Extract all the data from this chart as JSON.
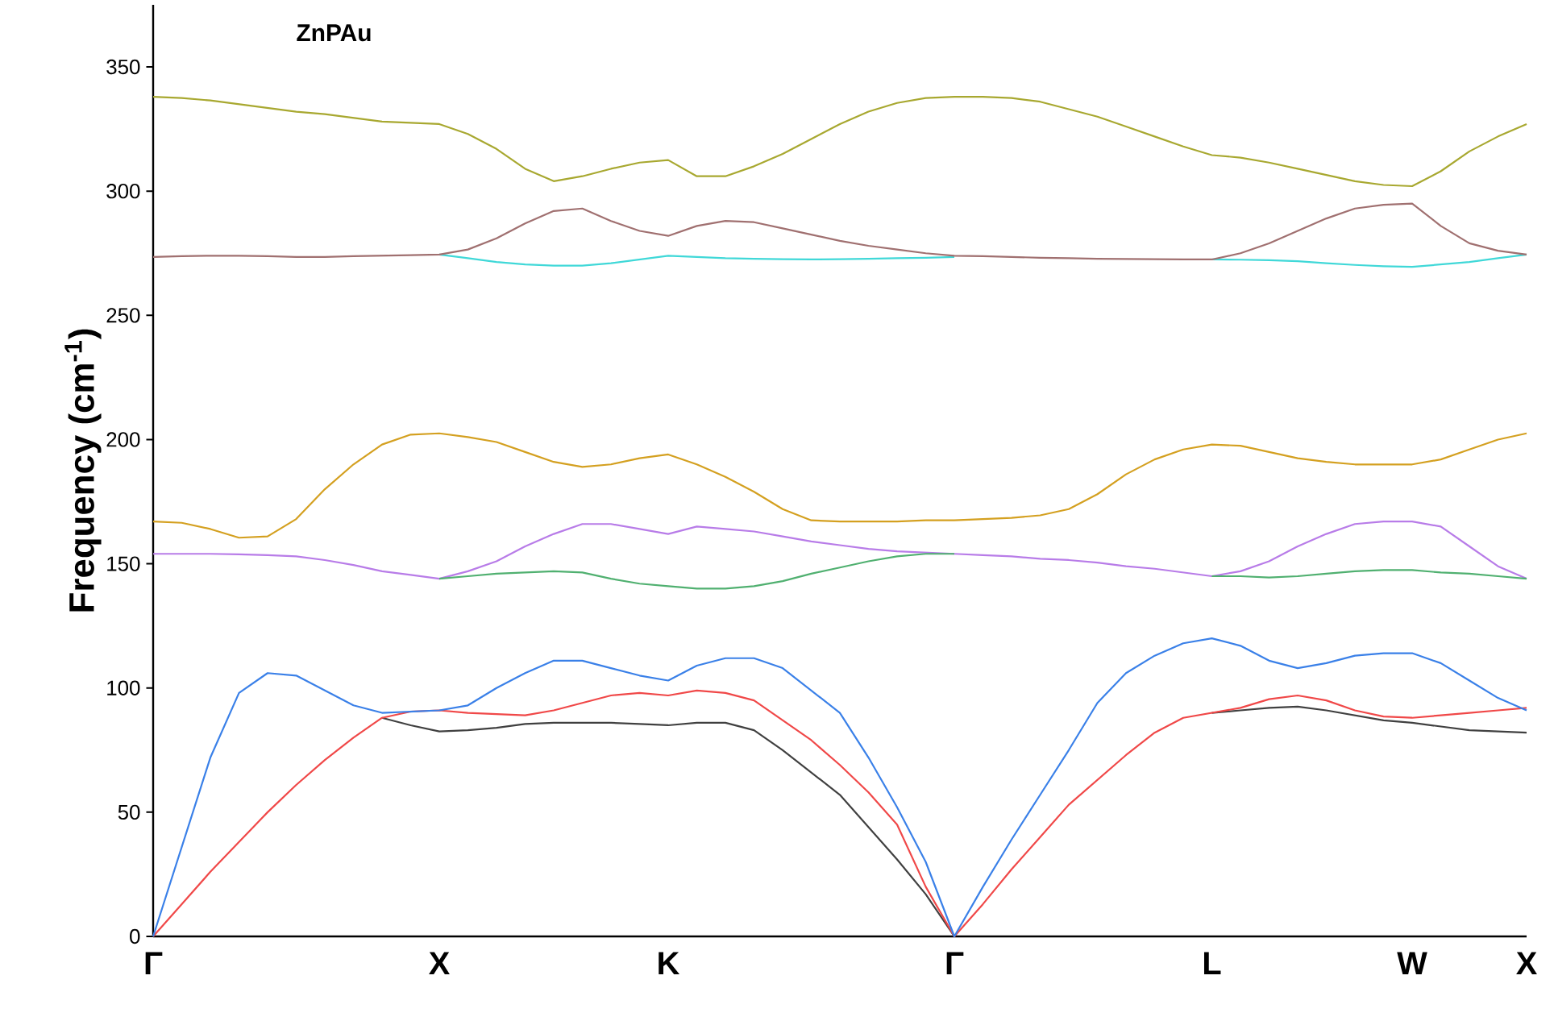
{
  "chart_data": {
    "type": "line",
    "title": "ZnPAu",
    "ylabel": "Frequency (cm$^{-1}$)",
    "categories": [
      "Γ",
      null,
      null,
      null,
      null,
      null,
      null,
      null,
      null,
      null,
      "X",
      null,
      null,
      null,
      null,
      null,
      null,
      null,
      "K",
      null,
      null,
      null,
      null,
      null,
      null,
      null,
      null,
      null,
      "Γ",
      null,
      null,
      null,
      null,
      null,
      null,
      null,
      null,
      "L",
      null,
      null,
      null,
      null,
      null,
      null,
      "W",
      null,
      null,
      null,
      "X"
    ],
    "ylim": [
      0,
      375
    ],
    "yticks": [
      0,
      50,
      100,
      150,
      200,
      250,
      300,
      350
    ],
    "marker": "none",
    "line_style": "solid",
    "series": [
      {
        "color": "#404040",
        "values": [
          null,
          null,
          null,
          null,
          null,
          null,
          null,
          null,
          88,
          85,
          82.5,
          83,
          84,
          85.5,
          86,
          86,
          86,
          85.5,
          85,
          86,
          86,
          83,
          75,
          66,
          57,
          44,
          31,
          17,
          0,
          null,
          null,
          null,
          null,
          null,
          null,
          null,
          null,
          90,
          91,
          92,
          92.5,
          91,
          89,
          87,
          86,
          84.5,
          83,
          82.5,
          82
        ]
      },
      {
        "color": "#f04848",
        "values": [
          0,
          13,
          26,
          38,
          50,
          61,
          71,
          80,
          88,
          90.5,
          91,
          90,
          89.5,
          89,
          91,
          94,
          97,
          98,
          97,
          99,
          98,
          95,
          87,
          79,
          69,
          58,
          45,
          20,
          0,
          13,
          27,
          40,
          53,
          63,
          73,
          82,
          88,
          90,
          92,
          95.5,
          97,
          95,
          91,
          88.5,
          88,
          89,
          90,
          91,
          92
        ]
      },
      {
        "color": "#3a80e8",
        "values": [
          0,
          36,
          72,
          98,
          106,
          105,
          99,
          93,
          90,
          90.5,
          91,
          93,
          100,
          106,
          111,
          111,
          108,
          105,
          103,
          109,
          112,
          112,
          108,
          99,
          90,
          72,
          52,
          30,
          0,
          20,
          39,
          57,
          75,
          94,
          106,
          113,
          118,
          120,
          117,
          111,
          108,
          110,
          113,
          114,
          114,
          110,
          103,
          96,
          91
        ]
      },
      {
        "color": "#b87ce8",
        "values": [
          154,
          154,
          154,
          153.8,
          153.5,
          153,
          151.5,
          149.5,
          147,
          145.5,
          144,
          147,
          151,
          157,
          162,
          166,
          166,
          164,
          162,
          165,
          164,
          163,
          161,
          159,
          157.5,
          156,
          155,
          154.5,
          154,
          153.5,
          153,
          152,
          151.5,
          150.5,
          149,
          148,
          146.5,
          145,
          147,
          151,
          157,
          162,
          166,
          167,
          167,
          165,
          157,
          149,
          144
        ]
      },
      {
        "color": "#50b070",
        "values": [
          null,
          null,
          null,
          null,
          null,
          null,
          null,
          null,
          null,
          null,
          144,
          145,
          146,
          146.5,
          147,
          146.5,
          144,
          142,
          141,
          140,
          140,
          141,
          143,
          146,
          148.5,
          151,
          153,
          154,
          154,
          null,
          null,
          null,
          null,
          null,
          null,
          null,
          null,
          145,
          145,
          144.5,
          145,
          146,
          147,
          147.5,
          147.5,
          146.5,
          146,
          145,
          144
        ]
      },
      {
        "color": "#d4a020",
        "values": [
          167,
          166.5,
          164,
          160.5,
          161,
          168,
          180,
          190,
          198,
          202,
          202.5,
          201,
          199,
          195,
          191,
          189,
          190,
          192.5,
          194,
          190,
          185,
          179,
          172,
          167.5,
          167,
          167,
          167,
          167.5,
          167.5,
          168,
          168.5,
          169.5,
          172,
          178,
          186,
          192,
          196,
          198,
          197.5,
          195,
          192.5,
          191,
          190,
          190,
          190,
          192,
          196,
          200,
          202.5
        ]
      },
      {
        "color": "#40d8d8",
        "values": [
          null,
          null,
          null,
          null,
          null,
          null,
          null,
          null,
          null,
          null,
          274.5,
          273,
          271.5,
          270.5,
          270,
          270,
          271,
          272.5,
          274,
          273.5,
          273,
          272.8,
          272.6,
          272.5,
          272.6,
          272.8,
          273,
          273.2,
          273.5,
          null,
          null,
          null,
          null,
          null,
          null,
          null,
          null,
          272.5,
          272.4,
          272.2,
          271.8,
          271,
          270.3,
          269.8,
          269.5,
          270.5,
          271.5,
          273,
          274.5
        ]
      },
      {
        "color": "#a07070",
        "values": [
          273.5,
          273.8,
          274,
          274,
          273.8,
          273.5,
          273.5,
          273.8,
          274,
          274.2,
          274.5,
          276.5,
          281,
          287,
          292,
          293,
          288,
          284,
          282,
          286,
          288,
          287.5,
          285,
          282.5,
          280,
          278,
          276.5,
          275,
          274,
          273.8,
          273.5,
          273.2,
          273,
          272.8,
          272.7,
          272.6,
          272.5,
          272.5,
          275,
          279,
          284,
          289,
          293,
          294.5,
          295,
          286,
          279,
          276,
          274.5
        ]
      },
      {
        "color": "#a8a830",
        "values": [
          338,
          337.5,
          336.5,
          335,
          333.5,
          332,
          331,
          329.5,
          328,
          327.5,
          327,
          323,
          317,
          309,
          304,
          306,
          309,
          311.5,
          312.5,
          306,
          306,
          310,
          315,
          321,
          327,
          332,
          335.5,
          337.5,
          338,
          338,
          337.5,
          336,
          333,
          330,
          326,
          322,
          318,
          314.5,
          313.5,
          311.5,
          309,
          306.5,
          304,
          302.5,
          302,
          308,
          316,
          322,
          327
        ]
      }
    ]
  }
}
